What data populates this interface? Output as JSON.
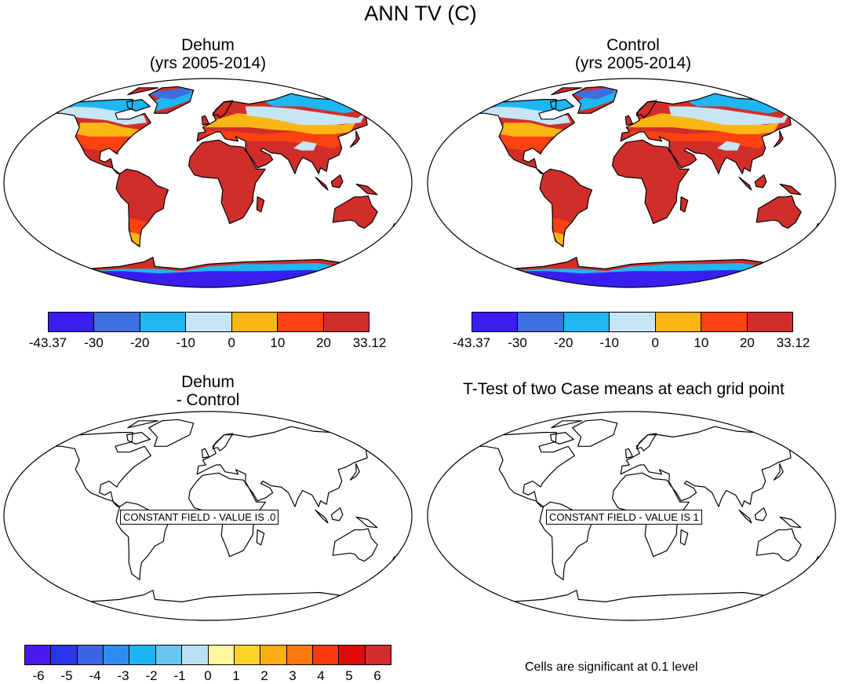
{
  "main_title": "ANN TV (C)",
  "panels": {
    "top_left": {
      "title_line1": "Dehum",
      "title_line2": "(yrs 2005-2014)"
    },
    "top_right": {
      "title_line1": "Control",
      "title_line2": "(yrs 2005-2014)"
    },
    "bottom_left": {
      "title_line1": "Dehum",
      "title_line2": "- Control",
      "constant_label": "CONSTANT FIELD - VALUE IS .0"
    },
    "bottom_right": {
      "title_line1": "T-Test of two Case means at each grid point",
      "constant_label": "CONSTANT FIELD - VALUE IS 1",
      "note": "Cells are significant at 0.1 level"
    }
  },
  "colorbar_abs": {
    "colors": [
      "#3a1ef0",
      "#3d6fe0",
      "#1fb6f2",
      "#c6e6f6",
      "#fbb514",
      "#fb4210",
      "#d12e2b"
    ],
    "tick_labels": [
      "-43.37",
      "-30",
      "-20",
      "-10",
      "0",
      "10",
      "20",
      "33.12"
    ]
  },
  "colorbar_diff": {
    "colors": [
      "#4a1af0",
      "#2a35f0",
      "#3c64e4",
      "#2e8cf0",
      "#1db4f4",
      "#68c6f0",
      "#b8e2f4",
      "#fff7a0",
      "#fcd325",
      "#fcac14",
      "#fc7a10",
      "#f83a0c",
      "#e00a0a",
      "#d22c2c"
    ],
    "tick_labels": [
      "-6",
      "-5",
      "-4",
      "-3",
      "-2",
      "-1",
      "0",
      "1",
      "2",
      "3",
      "4",
      "5",
      "6"
    ]
  },
  "map_colors": {
    "polar": "#3a1ef0",
    "cold": "#3d6fe0",
    "cool": "#1fb6f2",
    "pale": "#c6e6f6",
    "mild": "#fbb514",
    "warm": "#fb4210",
    "hot": "#d12e2b",
    "coast": "#000000"
  }
}
